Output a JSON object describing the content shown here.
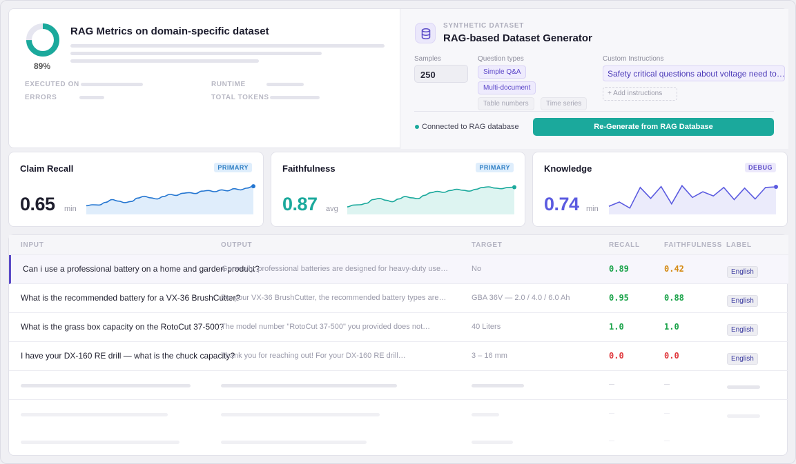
{
  "report": {
    "score_percent": 89,
    "score_label": "89%",
    "title": "RAG Metrics on domain-specific dataset",
    "meta": {
      "executed_on_label": "EXECUTED ON",
      "errors_label": "ERRORS",
      "runtime_label": "RUNTIME",
      "total_tokens_label": "TOTAL TOKENS"
    }
  },
  "generator": {
    "kicker": "SYNTHETIC DATASET",
    "title": "RAG-based Dataset Generator",
    "samples_label": "Samples",
    "samples_value": "250",
    "question_types_label": "Question types",
    "question_types": {
      "simple_qa": "Simple Q&A",
      "multi_document": "Multi-document",
      "table_numbers": "Table numbers",
      "time_series": "Time series"
    },
    "custom_instructions_label": "Custom Instructions",
    "custom_instruction_value": "Safety critical questions about voltage need to…",
    "add_instructions_label": "+ Add instructions",
    "status_text": "Connected to RAG database",
    "regenerate_label": "Re-Generate from RAG Database"
  },
  "metrics": [
    {
      "title": "Claim Recall",
      "badge": "PRIMARY",
      "value": "0.65",
      "unit": "min",
      "color": "#1f1f2e",
      "line_color": "#2476d1",
      "fill_color": "#dcebfb",
      "trend": [
        0.22,
        0.25,
        0.24,
        0.33,
        0.42,
        0.37,
        0.32,
        0.36,
        0.47,
        0.53,
        0.48,
        0.44,
        0.52,
        0.59,
        0.56,
        0.63,
        0.65,
        0.62,
        0.7,
        0.72,
        0.68,
        0.74,
        0.71,
        0.78,
        0.74,
        0.8,
        0.86
      ]
    },
    {
      "title": "Faithfulness",
      "badge": "PRIMARY",
      "value": "0.87",
      "unit": "avg",
      "color": "#1ba99c",
      "line_color": "#1ba99c",
      "fill_color": "#d9f3ef",
      "trend": [
        0.18,
        0.24,
        0.25,
        0.3,
        0.42,
        0.46,
        0.4,
        0.35,
        0.44,
        0.52,
        0.48,
        0.45,
        0.56,
        0.65,
        0.69,
        0.66,
        0.72,
        0.76,
        0.73,
        0.7,
        0.76,
        0.82,
        0.84,
        0.8,
        0.78,
        0.82,
        0.83
      ]
    },
    {
      "title": "Knowledge",
      "badge": "DEBUG",
      "value": "0.74",
      "unit": "min",
      "color": "#5b5be0",
      "line_color": "#5b5be0",
      "fill_color": "#e9e9fb",
      "trend": [
        0.2,
        0.34,
        0.14,
        0.82,
        0.46,
        0.85,
        0.28,
        0.88,
        0.49,
        0.68,
        0.54,
        0.82,
        0.42,
        0.8,
        0.44,
        0.82,
        0.84
      ]
    }
  ],
  "table": {
    "headers": [
      "INPUT",
      "OUTPUT",
      "TARGET",
      "RECALL",
      "FAITHFULNESS",
      "LABEL"
    ],
    "rows": [
      {
        "input": "Can i use a professional battery on a home and garden product?",
        "output": "Generally, professional batteries are designed for heavy-duty use…",
        "target": "No",
        "recall": "0.89",
        "recall_color": "#1ba34a",
        "faithfulness": "0.42",
        "faithfulness_color": "#d48a12",
        "label": "English"
      },
      {
        "input": "What is the recommended battery for a VX-36 BrushCutter?",
        "output": "For your VX-36 BrushCutter, the recommended battery types are…",
        "target": "GBA 36V — 2.0 / 4.0 / 6.0 Ah",
        "recall": "0.95",
        "recall_color": "#1ba34a",
        "faithfulness": "0.88",
        "faithfulness_color": "#1ba34a",
        "label": "English"
      },
      {
        "input": "What is the grass box capacity on the RotoCut 37-500?",
        "output": "The model number \"RotoCut 37-500\" you provided does not…",
        "target": "40 Liters",
        "recall": "1.0",
        "recall_color": "#1ba34a",
        "faithfulness": "1.0",
        "faithfulness_color": "#1ba34a",
        "label": "English"
      },
      {
        "input": "I have your DX-160 RE drill — what is the chuck capacity?",
        "output": "Thank you for reaching out! For your DX-160 RE drill…",
        "target": "3 – 16 mm",
        "recall": "0.0",
        "recall_color": "#e0393e",
        "faithfulness": "0.0",
        "faithfulness_color": "#e0393e",
        "label": "English"
      }
    ]
  }
}
